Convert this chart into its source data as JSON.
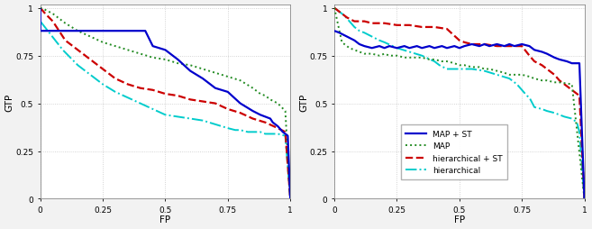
{
  "fig_width": 6.57,
  "fig_height": 2.55,
  "dpi": 100,
  "background_color": "#f2f2f2",
  "plot_bg_color": "#ffffff",
  "plot1": {
    "map_st": {
      "x": [
        0,
        0.0,
        0.05,
        0.1,
        0.15,
        0.18,
        0.2,
        0.22,
        0.25,
        0.3,
        0.35,
        0.4,
        0.42,
        0.45,
        0.5,
        0.55,
        0.6,
        0.65,
        0.7,
        0.75,
        0.8,
        0.85,
        0.88,
        0.9,
        0.92,
        0.93,
        0.95,
        0.97,
        0.98,
        0.99,
        1.0
      ],
      "y": [
        1.0,
        0.88,
        0.88,
        0.88,
        0.88,
        0.88,
        0.88,
        0.88,
        0.88,
        0.88,
        0.88,
        0.88,
        0.88,
        0.8,
        0.78,
        0.73,
        0.67,
        0.63,
        0.58,
        0.56,
        0.5,
        0.46,
        0.44,
        0.43,
        0.42,
        0.4,
        0.38,
        0.35,
        0.34,
        0.33,
        0.0
      ],
      "color": "#0000cc",
      "linestyle": "solid",
      "linewidth": 1.6,
      "label": "MAP + ST"
    },
    "map": {
      "x": [
        0,
        0.02,
        0.05,
        0.08,
        0.1,
        0.15,
        0.2,
        0.25,
        0.3,
        0.35,
        0.4,
        0.45,
        0.5,
        0.55,
        0.6,
        0.65,
        0.7,
        0.75,
        0.8,
        0.85,
        0.88,
        0.9,
        0.92,
        0.95,
        0.98,
        1.0
      ],
      "y": [
        1.0,
        0.99,
        0.97,
        0.94,
        0.92,
        0.88,
        0.85,
        0.82,
        0.8,
        0.78,
        0.76,
        0.74,
        0.73,
        0.71,
        0.7,
        0.68,
        0.66,
        0.64,
        0.62,
        0.58,
        0.55,
        0.54,
        0.52,
        0.5,
        0.46,
        0.0
      ],
      "color": "#228B22",
      "linestyle": "dotted",
      "linewidth": 1.4,
      "label": "MAP"
    },
    "hier_st": {
      "x": [
        0,
        0.02,
        0.05,
        0.08,
        0.1,
        0.15,
        0.2,
        0.25,
        0.3,
        0.35,
        0.4,
        0.45,
        0.5,
        0.55,
        0.6,
        0.65,
        0.7,
        0.75,
        0.8,
        0.85,
        0.9,
        0.95,
        0.98,
        1.0
      ],
      "y": [
        1.0,
        0.97,
        0.93,
        0.87,
        0.83,
        0.78,
        0.73,
        0.68,
        0.63,
        0.6,
        0.58,
        0.57,
        0.55,
        0.54,
        0.52,
        0.51,
        0.5,
        0.47,
        0.45,
        0.42,
        0.4,
        0.37,
        0.35,
        0.0
      ],
      "color": "#cc0000",
      "linestyle": "dashed",
      "linewidth": 1.6,
      "label": "hierarchical + ST"
    },
    "hier": {
      "x": [
        0,
        0.03,
        0.06,
        0.09,
        0.12,
        0.15,
        0.2,
        0.25,
        0.3,
        0.35,
        0.4,
        0.45,
        0.5,
        0.55,
        0.6,
        0.65,
        0.7,
        0.75,
        0.78,
        0.8,
        0.83,
        0.85,
        0.88,
        0.9,
        0.95,
        0.98,
        1.0
      ],
      "y": [
        0.93,
        0.88,
        0.83,
        0.78,
        0.74,
        0.7,
        0.65,
        0.6,
        0.56,
        0.53,
        0.5,
        0.47,
        0.44,
        0.43,
        0.42,
        0.41,
        0.39,
        0.37,
        0.36,
        0.36,
        0.35,
        0.35,
        0.35,
        0.34,
        0.34,
        0.33,
        0.0
      ],
      "color": "#00cccc",
      "linestyle": "dashdot",
      "linewidth": 1.4,
      "label": "hierarchical"
    },
    "xlabel": "FP",
    "ylabel": "GTP",
    "xlim": [
      0,
      1
    ],
    "ylim": [
      0,
      1.02
    ]
  },
  "plot2": {
    "map_st": {
      "x": [
        0,
        0.02,
        0.05,
        0.08,
        0.1,
        0.12,
        0.15,
        0.18,
        0.2,
        0.22,
        0.25,
        0.28,
        0.3,
        0.33,
        0.35,
        0.38,
        0.4,
        0.43,
        0.45,
        0.48,
        0.5,
        0.52,
        0.55,
        0.58,
        0.6,
        0.62,
        0.65,
        0.68,
        0.7,
        0.72,
        0.75,
        0.78,
        0.8,
        0.83,
        0.85,
        0.88,
        0.9,
        0.93,
        0.95,
        0.97,
        0.98,
        1.0
      ],
      "y": [
        0.88,
        0.87,
        0.85,
        0.83,
        0.81,
        0.8,
        0.79,
        0.8,
        0.79,
        0.8,
        0.79,
        0.8,
        0.79,
        0.8,
        0.79,
        0.8,
        0.79,
        0.8,
        0.79,
        0.8,
        0.79,
        0.8,
        0.81,
        0.8,
        0.81,
        0.8,
        0.81,
        0.8,
        0.81,
        0.8,
        0.81,
        0.8,
        0.78,
        0.77,
        0.76,
        0.74,
        0.73,
        0.72,
        0.71,
        0.71,
        0.71,
        0.0
      ],
      "color": "#0000cc",
      "linestyle": "solid",
      "linewidth": 1.6,
      "label": "MAP + ST"
    },
    "map": {
      "x": [
        0,
        0.03,
        0.06,
        0.08,
        0.1,
        0.12,
        0.15,
        0.18,
        0.2,
        0.22,
        0.25,
        0.28,
        0.3,
        0.33,
        0.35,
        0.38,
        0.4,
        0.43,
        0.45,
        0.48,
        0.5,
        0.52,
        0.55,
        0.58,
        0.6,
        0.62,
        0.65,
        0.68,
        0.7,
        0.73,
        0.75,
        0.78,
        0.8,
        0.83,
        0.85,
        0.88,
        0.9,
        0.95,
        1.0
      ],
      "y": [
        1.0,
        0.82,
        0.79,
        0.78,
        0.77,
        0.76,
        0.76,
        0.75,
        0.76,
        0.75,
        0.75,
        0.74,
        0.74,
        0.74,
        0.74,
        0.73,
        0.73,
        0.72,
        0.72,
        0.71,
        0.7,
        0.7,
        0.69,
        0.69,
        0.68,
        0.68,
        0.67,
        0.66,
        0.65,
        0.65,
        0.65,
        0.64,
        0.63,
        0.62,
        0.62,
        0.61,
        0.61,
        0.6,
        0.0
      ],
      "color": "#228B22",
      "linestyle": "dotted",
      "linewidth": 1.4,
      "label": "MAP"
    },
    "hier_st": {
      "x": [
        0,
        0.01,
        0.03,
        0.05,
        0.08,
        0.1,
        0.12,
        0.15,
        0.18,
        0.2,
        0.25,
        0.3,
        0.35,
        0.4,
        0.45,
        0.5,
        0.52,
        0.55,
        0.58,
        0.6,
        0.65,
        0.7,
        0.73,
        0.75,
        0.78,
        0.8,
        0.83,
        0.85,
        0.87,
        0.88,
        0.9,
        0.92,
        0.93,
        0.95,
        0.97,
        0.98,
        1.0
      ],
      "y": [
        1.0,
        0.99,
        0.97,
        0.95,
        0.93,
        0.93,
        0.93,
        0.92,
        0.92,
        0.92,
        0.91,
        0.91,
        0.9,
        0.9,
        0.89,
        0.83,
        0.82,
        0.81,
        0.81,
        0.81,
        0.8,
        0.8,
        0.8,
        0.8,
        0.75,
        0.72,
        0.7,
        0.68,
        0.66,
        0.65,
        0.62,
        0.6,
        0.59,
        0.57,
        0.55,
        0.54,
        0.0
      ],
      "color": "#cc0000",
      "linestyle": "dashed",
      "linewidth": 1.6,
      "label": "hierarchical + ST"
    },
    "hier": {
      "x": [
        0,
        0.02,
        0.04,
        0.06,
        0.08,
        0.1,
        0.12,
        0.15,
        0.18,
        0.2,
        0.25,
        0.3,
        0.35,
        0.4,
        0.42,
        0.45,
        0.5,
        0.55,
        0.6,
        0.65,
        0.7,
        0.73,
        0.75,
        0.77,
        0.78,
        0.8,
        0.83,
        0.85,
        0.88,
        0.9,
        0.92,
        0.95,
        0.97,
        0.98,
        1.0
      ],
      "y": [
        1.0,
        0.98,
        0.96,
        0.93,
        0.9,
        0.88,
        0.87,
        0.85,
        0.83,
        0.82,
        0.79,
        0.77,
        0.75,
        0.72,
        0.7,
        0.68,
        0.68,
        0.68,
        0.67,
        0.65,
        0.63,
        0.6,
        0.57,
        0.54,
        0.53,
        0.48,
        0.47,
        0.46,
        0.45,
        0.44,
        0.43,
        0.42,
        0.4,
        0.35,
        0.0
      ],
      "color": "#00cccc",
      "linestyle": "dashdot",
      "linewidth": 1.4,
      "label": "hierarchical"
    },
    "xlabel": "FP",
    "ylabel": "GTP",
    "xlim": [
      0,
      1
    ],
    "ylim": [
      0,
      1.02
    ]
  },
  "legend": {
    "labels": [
      "MAP + ST",
      "MAP",
      "hierarchical + ST",
      "hierarchical"
    ],
    "colors": [
      "#0000cc",
      "#228B22",
      "#cc0000",
      "#00cccc"
    ],
    "linestyles": [
      "solid",
      "dotted",
      "dashed",
      "dashdot"
    ],
    "linewidths": [
      1.6,
      1.4,
      1.6,
      1.4
    ],
    "fontsize": 6.5
  },
  "grid_color": "#c8c8c8",
  "tick_fontsize": 6.5,
  "axis_label_fontsize": 7.5
}
